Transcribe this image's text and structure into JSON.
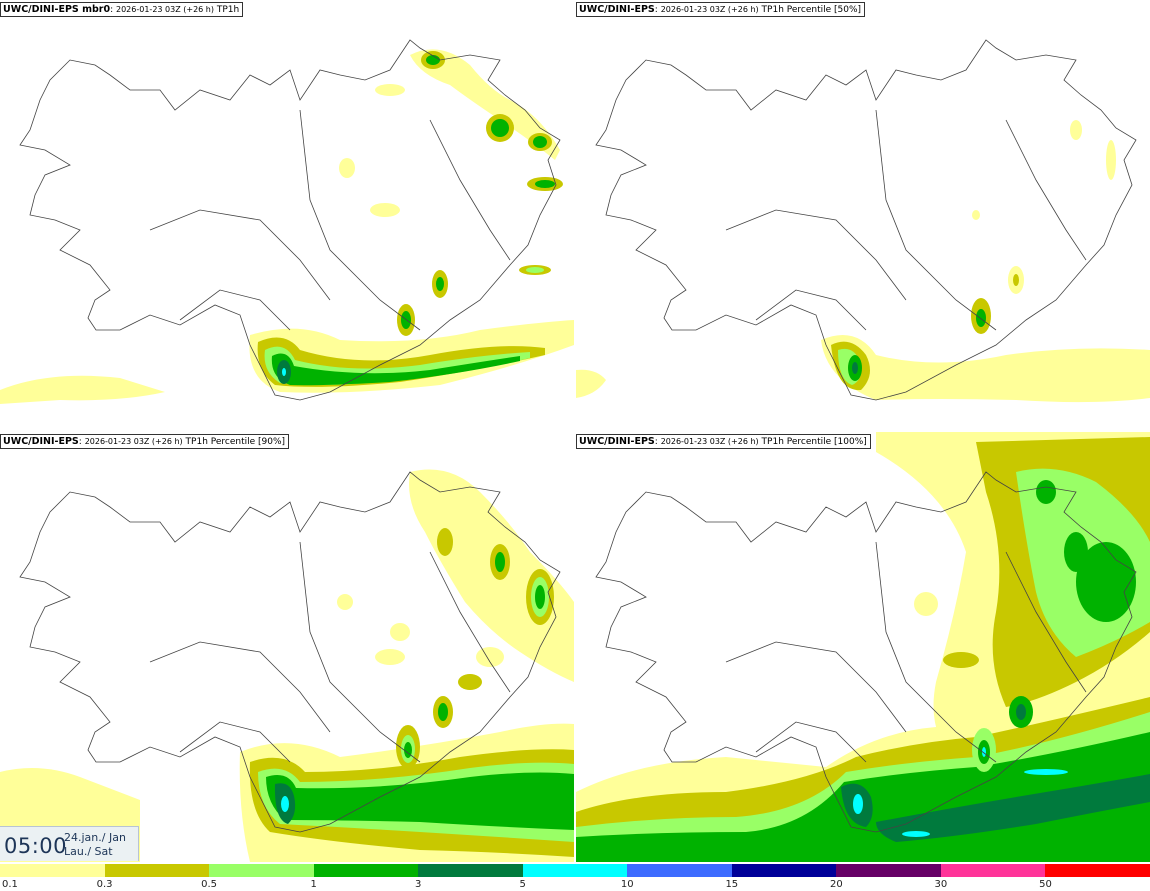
{
  "panels": [
    {
      "source": "UWC/DINI-EPS mbr0",
      "timestamp": "2026-01-23 03Z (+26 h)",
      "field": "TP1h"
    },
    {
      "source": "UWC/DINI-EPS",
      "timestamp": "2026-01-23 03Z (+26 h)",
      "field": "TP1h Percentile [50%]"
    },
    {
      "source": "UWC/DINI-EPS",
      "timestamp": "2026-01-23 03Z (+26 h)",
      "field": "TP1h Percentile [90%]"
    },
    {
      "source": "UWC/DINI-EPS",
      "timestamp": "2026-01-23 03Z (+26 h)",
      "field": "TP1h Percentile [100%]"
    }
  ],
  "valid_time": {
    "time": "05:00",
    "date_line1": "24.jan./ Jan",
    "date_line2": "Lau./ Sat"
  },
  "legend": {
    "labels": [
      "0.1",
      "0.3",
      "0.5",
      "1",
      "3",
      "5",
      "10",
      "15",
      "20",
      "30",
      "50"
    ],
    "colors": [
      "#ffff99",
      "#c8c800",
      "#99ff66",
      "#00b200",
      "#007a3d",
      "#00ffff",
      "#3d6bff",
      "#000099",
      "#660066",
      "#ff3399",
      "#ff0000"
    ]
  },
  "map_colors": {
    "light_yellow": "#ffff99",
    "olive": "#c8c800",
    "light_green": "#99ff66",
    "green": "#00b200",
    "dark_green": "#007a3d",
    "cyan": "#00ffff",
    "outline": "#444444"
  }
}
